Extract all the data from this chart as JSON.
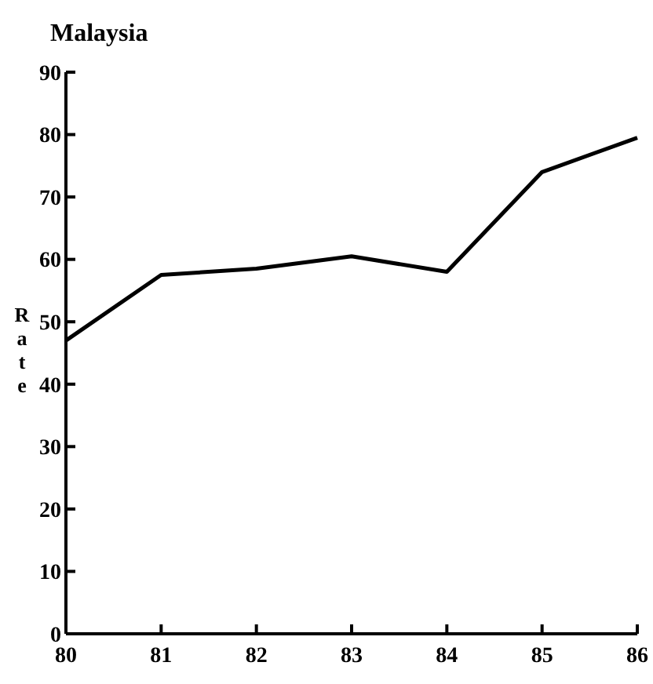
{
  "chart_data": {
    "type": "line",
    "title": "Malaysia",
    "ylabel": "Rate",
    "x": [
      80,
      81,
      82,
      83,
      84,
      85,
      86
    ],
    "series": [
      {
        "color": "#000000",
        "values": [
          47,
          57.5,
          58.5,
          60.5,
          58,
          74,
          79.5
        ]
      }
    ],
    "xlim": [
      80,
      86
    ],
    "xticks": [
      80,
      81,
      82,
      83,
      84,
      85,
      86
    ],
    "ylim": [
      0,
      90
    ],
    "yticks": [
      0,
      10,
      20,
      30,
      40,
      50,
      60,
      70,
      80,
      90
    ],
    "grid": false,
    "marker": "none",
    "line_style": "solid"
  }
}
